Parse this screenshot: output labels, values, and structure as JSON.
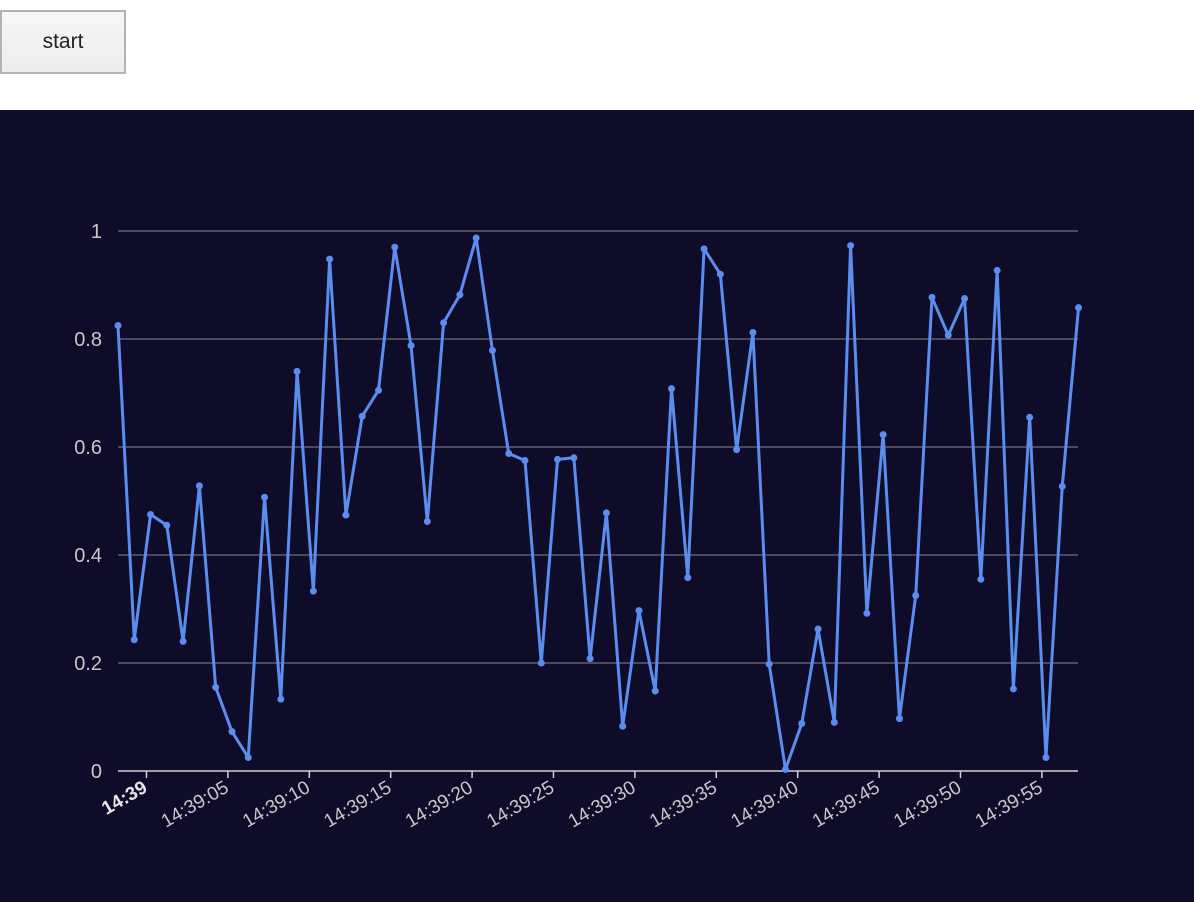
{
  "toolbar": {
    "start_label": "start"
  },
  "colors": {
    "panel_background": "#0f0c29",
    "line": "#5b8def",
    "gridline": "#5e5e6e",
    "axis": "#d0d0d0",
    "tick_label": "#c8c8c8"
  },
  "chart_data": {
    "type": "line",
    "title": "",
    "xlabel": "",
    "ylabel": "",
    "grid": true,
    "legend": "none",
    "ylim": [
      0,
      1
    ],
    "y_ticks": [
      "0",
      "0.2",
      "0.4",
      "0.6",
      "0.8",
      "1"
    ],
    "x_tick_labels": [
      "14:39",
      "14:39:05",
      "14:39:10",
      "14:39:15",
      "14:39:20",
      "14:39:25",
      "14:39:30",
      "14:39:35",
      "14:39:40",
      "14:39:45",
      "14:39:50",
      "14:39:55"
    ],
    "x_start": "14:38:58.25",
    "x_interval_seconds": 1,
    "series": [
      {
        "values": [
          0.825,
          0.243,
          0.475,
          0.455,
          0.24,
          0.528,
          0.155,
          0.073,
          0.025,
          0.507,
          0.133,
          0.74,
          0.333,
          0.948,
          0.474,
          0.657,
          0.705,
          0.97,
          0.788,
          0.462,
          0.83,
          0.882,
          0.987,
          0.779,
          0.588,
          0.575,
          0.2,
          0.577,
          0.58,
          0.208,
          0.478,
          0.083,
          0.297,
          0.148,
          0.708,
          0.358,
          0.967,
          0.92,
          0.595,
          0.812,
          0.198,
          0.003,
          0.088,
          0.263,
          0.09,
          0.973,
          0.292,
          0.623,
          0.097,
          0.325,
          0.877,
          0.807,
          0.875,
          0.355,
          0.927,
          0.152,
          0.655,
          0.025,
          0.527,
          0.858
        ]
      }
    ]
  }
}
